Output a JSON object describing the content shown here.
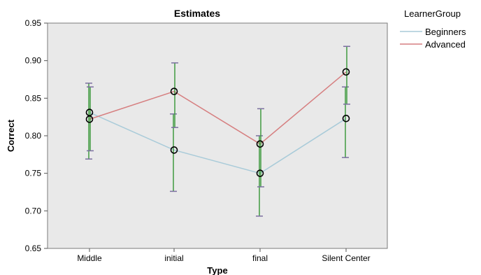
{
  "chart_data": {
    "type": "line",
    "title": "Estimates",
    "xlabel": "Type",
    "ylabel": "Correct",
    "categories": [
      "Middle",
      "initial",
      "final",
      "Silent Center"
    ],
    "ylim": [
      0.65,
      0.95
    ],
    "yticks": [
      "0.65",
      "0.70",
      "0.75",
      "0.80",
      "0.85",
      "0.90",
      "0.95"
    ],
    "grid": false,
    "legend": {
      "title": "LearnerGroup",
      "placement": "right"
    },
    "series": [
      {
        "name": "Beginners",
        "color": "#a9cbd9",
        "values": [
          0.831,
          0.781,
          0.75,
          0.823
        ],
        "error_low": [
          0.769,
          0.726,
          0.693,
          0.771
        ],
        "error_high": [
          0.87,
          0.829,
          0.8,
          0.865
        ]
      },
      {
        "name": "Advanced",
        "color": "#d67f80",
        "values": [
          0.822,
          0.859,
          0.789,
          0.885
        ],
        "error_low": [
          0.78,
          0.811,
          0.732,
          0.842
        ],
        "error_high": [
          0.865,
          0.897,
          0.836,
          0.919
        ]
      }
    ],
    "error_bar_color": "#3f9a3f",
    "error_cap_color": "#7b6fa0",
    "marker_color": "#000000"
  }
}
